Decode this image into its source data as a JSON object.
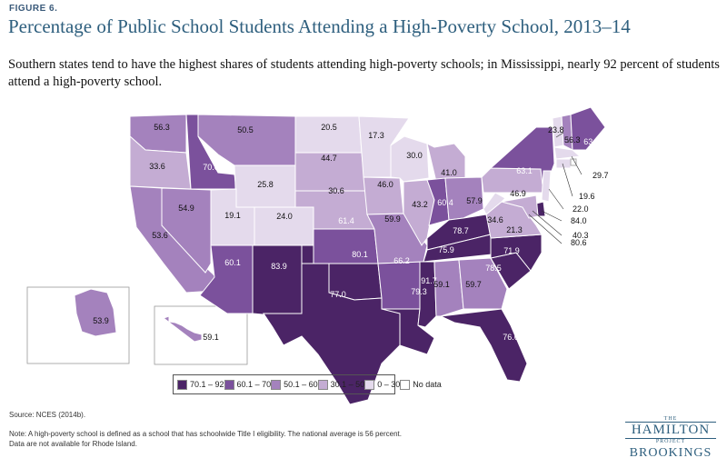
{
  "figure_label": "FIGURE 6.",
  "title": "Percentage of Public School Students Attending a High-Poverty School, 2013–14",
  "subtitle": "Southern states tend to have the highest shares of students attending high-poverty schools; in Mississippi, nearly 92 percent of students attend a high-poverty school.",
  "colors": {
    "c1": "#4b2466",
    "c2": "#7b519c",
    "c3": "#a482bd",
    "c4": "#c4acd3",
    "c5": "#e4daec",
    "nodata": "#ffffff",
    "border": "#ffffff"
  },
  "legend": [
    {
      "label": "70.1 – 92",
      "color": "#4b2466"
    },
    {
      "label": "60.1 – 70",
      "color": "#7b519c"
    },
    {
      "label": "50.1 – 60",
      "color": "#a482bd"
    },
    {
      "label": "30.1 – 50",
      "color": "#c4acd3"
    },
    {
      "label": "0 – 30",
      "color": "#e4daec"
    },
    {
      "label": "No data",
      "color": "#ffffff"
    }
  ],
  "states": [
    {
      "code": "WA",
      "value": "56.3"
    },
    {
      "code": "OR",
      "value": "33.6"
    },
    {
      "code": "CA",
      "value": "53.6"
    },
    {
      "code": "NV",
      "value": "54.9"
    },
    {
      "code": "ID",
      "value": "70.0"
    },
    {
      "code": "MT",
      "value": "50.5"
    },
    {
      "code": "WY",
      "value": "25.8"
    },
    {
      "code": "UT",
      "value": "19.1"
    },
    {
      "code": "AZ",
      "value": "60.1"
    },
    {
      "code": "CO",
      "value": "24.0"
    },
    {
      "code": "NM",
      "value": "83.9"
    },
    {
      "code": "ND",
      "value": "20.5"
    },
    {
      "code": "SD",
      "value": "44.7"
    },
    {
      "code": "NE",
      "value": "30.6"
    },
    {
      "code": "KS",
      "value": "61.4"
    },
    {
      "code": "OK",
      "value": "80.1"
    },
    {
      "code": "TX",
      "value": "77.0"
    },
    {
      "code": "MN",
      "value": "17.3"
    },
    {
      "code": "IA",
      "value": "46.0"
    },
    {
      "code": "MO",
      "value": "59.9"
    },
    {
      "code": "AR",
      "value": "66.2"
    },
    {
      "code": "LA",
      "value": "79.3"
    },
    {
      "code": "WI",
      "value": "30.0"
    },
    {
      "code": "IL",
      "value": "43.2"
    },
    {
      "code": "MI",
      "value": "41.0"
    },
    {
      "code": "IN",
      "value": "60.4"
    },
    {
      "code": "OH",
      "value": "57.9"
    },
    {
      "code": "KY",
      "value": "78.7"
    },
    {
      "code": "TN",
      "value": "75.9"
    },
    {
      "code": "MS",
      "value": "91.7"
    },
    {
      "code": "AL",
      "value": "59.1"
    },
    {
      "code": "GA",
      "value": "59.7"
    },
    {
      "code": "FL",
      "value": "76.6"
    },
    {
      "code": "SC",
      "value": "78.5"
    },
    {
      "code": "NC",
      "value": "71.9"
    },
    {
      "code": "VA",
      "value": "34.6"
    },
    {
      "code": "WV",
      "value": "21.3"
    },
    {
      "code": "PA",
      "value": "46.9"
    },
    {
      "code": "NY",
      "value": "63.1"
    },
    {
      "code": "VT",
      "value": "23.8"
    },
    {
      "code": "NH",
      "value": "56.3"
    },
    {
      "code": "ME",
      "value": "63.5"
    },
    {
      "code": "MA",
      "value": "29.7"
    },
    {
      "code": "CT",
      "value": "19.6"
    },
    {
      "code": "NJ",
      "value": "22.0"
    },
    {
      "code": "DE",
      "value": "84.0"
    },
    {
      "code": "MD",
      "value": "40.3"
    },
    {
      "code": "DC",
      "value": "80.6"
    },
    {
      "code": "AK",
      "value": "53.9"
    },
    {
      "code": "HI",
      "value": "59.1"
    },
    {
      "code": "RI",
      "value": ""
    }
  ],
  "source": "Source: NCES (2014b).",
  "note_1": "Note: A high-poverty school is defined as a school that has schoolwide Title I eligibility. The national average is 56 percent.",
  "note_2": "Data are not available for Rhode Island.",
  "brand": {
    "the": "THE",
    "hamilton": "HAMILTON",
    "project": "PROJECT",
    "brookings": "BROOKINGS"
  }
}
